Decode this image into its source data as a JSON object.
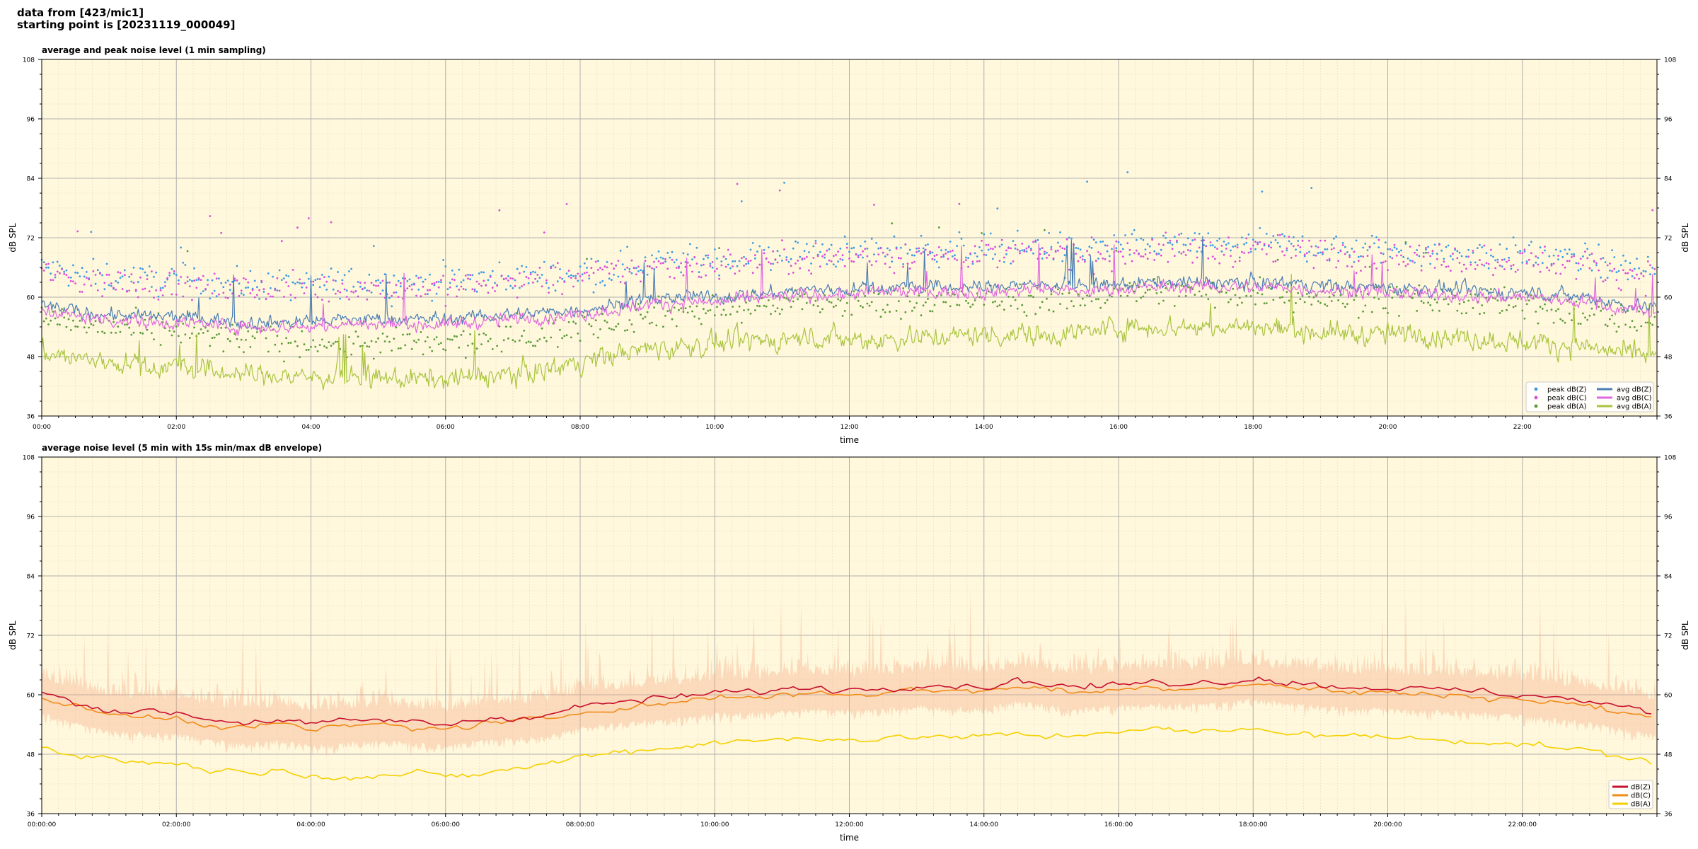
{
  "header": {
    "line1": "data from [423/mic1]",
    "line2": "starting point is [20231119_000049]"
  },
  "chart_data": [
    {
      "type": "line",
      "title": "average and peak noise level (1 min sampling)",
      "xlabel": "time",
      "ylabel": "dB SPL",
      "ylim": [
        36,
        108
      ],
      "yticks": [
        36,
        48,
        60,
        72,
        84,
        96,
        108
      ],
      "x_range_hours": [
        0,
        24
      ],
      "x_tick_labels": [
        "00:00",
        "02:00",
        "04:00",
        "06:00",
        "08:00",
        "10:00",
        "12:00",
        "14:00",
        "16:00",
        "18:00",
        "20:00",
        "22:00"
      ],
      "grid": true,
      "legend_position": "lower-right",
      "background": "#fff8dc",
      "x_hours": [
        0,
        0.5,
        1,
        1.5,
        2,
        2.5,
        3,
        3.5,
        4,
        4.5,
        5,
        5.5,
        6,
        6.5,
        7,
        7.5,
        8,
        8.5,
        9,
        9.5,
        10,
        10.5,
        11,
        11.5,
        12,
        12.5,
        13,
        13.5,
        14,
        14.5,
        15,
        15.5,
        16,
        16.5,
        17,
        17.5,
        18,
        18.5,
        19,
        19.5,
        20,
        20.5,
        21,
        21.5,
        22,
        22.5,
        23,
        23.5,
        24
      ],
      "series": [
        {
          "name": "avg dB(Z)",
          "kind": "line",
          "color": "#4a7cb4",
          "values": [
            58.5,
            57,
            56.5,
            56,
            56,
            55.5,
            55,
            55,
            55,
            55.5,
            55.5,
            55.5,
            55.5,
            56,
            56.5,
            57,
            57.5,
            58.5,
            59.5,
            60,
            60,
            60.5,
            61,
            61.5,
            61.5,
            62,
            62,
            62,
            62,
            62.5,
            62.5,
            62,
            62.5,
            63,
            63,
            63,
            63,
            63,
            62.5,
            62,
            62,
            61.5,
            61.5,
            61,
            61,
            60.5,
            60,
            58.5,
            58
          ]
        },
        {
          "name": "avg dB(C)",
          "kind": "line",
          "color": "#e066e0",
          "values": [
            57.5,
            56,
            55.5,
            55,
            55,
            54.5,
            54,
            54,
            54,
            54.5,
            54.5,
            54.5,
            54.5,
            55,
            55.5,
            56,
            56.5,
            57.5,
            58.5,
            59,
            59,
            59.5,
            60,
            60.5,
            60.5,
            61,
            61,
            61,
            61,
            61.5,
            61.5,
            61,
            61.5,
            62,
            62,
            62,
            62,
            62,
            61.5,
            61,
            61,
            60.5,
            60.5,
            60,
            60,
            59.5,
            59,
            57.5,
            57
          ]
        },
        {
          "name": "avg dB(A)",
          "kind": "line",
          "color": "#a8c43e",
          "values": [
            49,
            47.5,
            47,
            46,
            46,
            45,
            44.5,
            44,
            44,
            43.5,
            43.5,
            43.5,
            43.5,
            44,
            44.5,
            45.5,
            47,
            48.5,
            49.5,
            50,
            50.5,
            51,
            51.5,
            52,
            51.5,
            51.5,
            52,
            52,
            52.5,
            52.5,
            52.5,
            53,
            54,
            54,
            54,
            54,
            54,
            53.5,
            53,
            52.5,
            52.5,
            52.5,
            52,
            51.5,
            51,
            50.5,
            50,
            48.5,
            48
          ]
        },
        {
          "name": "peak dB(Z)",
          "kind": "scatter",
          "color": "#3d9be3",
          "values": [
            66,
            64.5,
            64,
            63.5,
            63.5,
            63,
            62.5,
            62.5,
            62.5,
            63,
            63,
            63,
            63,
            63.5,
            64,
            64.5,
            65,
            66,
            67,
            67.5,
            67.5,
            68,
            68.5,
            69,
            69,
            69.5,
            69.5,
            69.5,
            69.5,
            70,
            70,
            69.5,
            70,
            70.5,
            70.5,
            70.5,
            70.5,
            70.5,
            70,
            69.5,
            69.5,
            69,
            69,
            68.5,
            68.5,
            68,
            67.5,
            66,
            65.5
          ]
        },
        {
          "name": "peak dB(C)",
          "kind": "scatter",
          "color": "#d84ed8",
          "values": [
            65,
            63.5,
            63,
            62.5,
            62.5,
            62,
            61.5,
            61.5,
            61.5,
            62,
            62,
            62,
            62,
            62.5,
            63,
            63.5,
            64,
            65,
            66,
            66.5,
            66.5,
            67,
            67.5,
            68,
            68,
            68.5,
            68.5,
            68.5,
            68.5,
            69,
            69,
            68.5,
            69,
            69.5,
            69.5,
            69.5,
            69.5,
            69.5,
            69,
            68.5,
            68.5,
            68,
            68,
            67.5,
            67.5,
            67,
            66.5,
            65,
            64.5
          ]
        },
        {
          "name": "peak dB(A)",
          "kind": "scatter",
          "color": "#5c9a3c",
          "values": [
            56,
            54.5,
            54,
            53,
            53,
            52,
            51.5,
            51,
            51,
            50.5,
            50.5,
            50.5,
            50.5,
            51,
            51.5,
            52.5,
            54,
            55.5,
            56.5,
            57,
            57.5,
            58,
            58.5,
            59,
            58.5,
            58.5,
            59,
            59,
            59.5,
            59.5,
            59.5,
            60,
            61,
            61,
            61,
            61,
            61,
            60.5,
            60,
            59.5,
            59.5,
            59.5,
            59,
            58.5,
            58,
            57.5,
            57,
            55.5,
            55
          ]
        }
      ]
    },
    {
      "type": "line",
      "title": "average noise level (5 min with 15s min/max dB envelope)",
      "xlabel": "time",
      "ylabel": "dB SPL",
      "ylim": [
        36,
        108
      ],
      "yticks": [
        36,
        48,
        60,
        72,
        84,
        96,
        108
      ],
      "x_range_hours": [
        0,
        24
      ],
      "x_tick_labels": [
        "00:00:00",
        "02:00:00",
        "04:00:00",
        "06:00:00",
        "08:00:00",
        "10:00:00",
        "12:00:00",
        "14:00:00",
        "16:00:00",
        "18:00:00",
        "20:00:00",
        "22:00:00"
      ],
      "grid": true,
      "legend_position": "lower-right",
      "background": "#fff8dc",
      "x_hours": [
        0,
        0.5,
        1,
        1.5,
        2,
        2.5,
        3,
        3.5,
        4,
        4.5,
        5,
        5.5,
        6,
        6.5,
        7,
        7.5,
        8,
        8.5,
        9,
        9.5,
        10,
        10.5,
        11,
        11.5,
        12,
        12.5,
        13,
        13.5,
        14,
        14.5,
        15,
        15.5,
        16,
        16.5,
        17,
        17.5,
        18,
        18.5,
        19,
        19.5,
        20,
        20.5,
        21,
        21.5,
        22,
        22.5,
        23,
        23.5,
        24
      ],
      "envelope_color": "#f4a582",
      "series": [
        {
          "name": "dB(Z)",
          "color": "#c8102e",
          "values": [
            60.5,
            58.5,
            57,
            56.5,
            56.5,
            55,
            54.5,
            55,
            54,
            54.5,
            55,
            54.5,
            54,
            55,
            55.5,
            56,
            57.5,
            58.5,
            59,
            59.5,
            60.5,
            60.5,
            61,
            61.5,
            61,
            61.5,
            62,
            62,
            61.5,
            63,
            62,
            61.5,
            62,
            62.5,
            62.5,
            62.5,
            63.5,
            62.5,
            62,
            61.5,
            61.5,
            61,
            61,
            60.5,
            60,
            59.5,
            58.5,
            57.5,
            56
          ]
        },
        {
          "name": "dB(C)",
          "color": "#f08c1a",
          "values": [
            59.5,
            57.5,
            56,
            55.5,
            55.5,
            54,
            53.5,
            54,
            53,
            53.5,
            54,
            53.5,
            53,
            54,
            54.5,
            55,
            56.5,
            57.5,
            58,
            58.5,
            59.5,
            59.5,
            60,
            60.5,
            60,
            60.5,
            61,
            61,
            60.5,
            62,
            61,
            60.5,
            61,
            61.5,
            61.5,
            61.5,
            62.5,
            61.5,
            61,
            60.5,
            60.5,
            60,
            60,
            59.5,
            59,
            58.5,
            57.5,
            56.5,
            55
          ]
        },
        {
          "name": "dB(A)",
          "color": "#f5d000",
          "values": [
            49.5,
            48,
            47,
            46.5,
            46,
            45,
            44.5,
            44.5,
            44,
            43.5,
            43.5,
            44,
            43.5,
            44,
            45,
            46,
            47.5,
            48.5,
            49,
            49.5,
            50.5,
            50.5,
            51,
            51.5,
            51,
            51,
            51.5,
            51.5,
            51.5,
            52,
            51.5,
            52,
            53,
            53,
            52.5,
            52.5,
            53,
            52.5,
            52,
            51.5,
            51.5,
            51,
            51,
            50.5,
            50,
            49.5,
            48.5,
            47.5,
            46
          ]
        }
      ]
    }
  ]
}
